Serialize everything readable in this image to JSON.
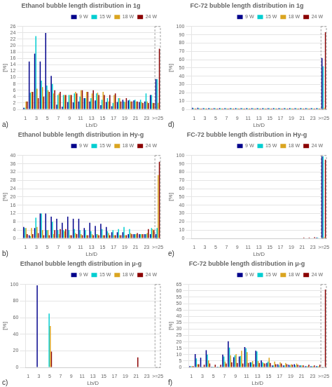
{
  "chart_data": [
    {
      "type": "bar",
      "title": "Ethanol bubble length distribution in 1g",
      "x_label": "Lb/D",
      "y_label": "[%]",
      "annotation": "a)",
      "categories": [
        "1",
        null,
        "3",
        null,
        "5",
        null,
        "7",
        null,
        "9",
        null,
        "11",
        null,
        "13",
        null,
        "15",
        null,
        "17",
        null,
        "19",
        null,
        "21",
        null,
        "23",
        null,
        ">=25"
      ],
      "series": [
        {
          "name": "9 W",
          "color": "#00008B",
          "values": [
            0.5,
            15.0,
            17.5,
            15.0,
            24.0,
            10.5,
            1.5,
            0.8,
            2.3,
            2.2,
            2.5,
            3.5,
            2.5,
            2.8,
            1.3,
            2.3,
            1.0,
            2.3,
            3.0,
            2.8,
            2.8,
            2.3,
            2.5,
            4.5,
            9.5
          ]
        },
        {
          "name": "15 W",
          "color": "#00CED1",
          "values": [
            0.5,
            5.2,
            23.0,
            9.0,
            7.5,
            8.0,
            4.5,
            4.5,
            4.5,
            5.0,
            4.0,
            3.5,
            3.5,
            5.0,
            3.0,
            3.5,
            2.0,
            3.5,
            2.5,
            3.0,
            3.0,
            3.0,
            5.0,
            4.5,
            9.5
          ]
        },
        {
          "name": "18 W",
          "color": "#DAA520",
          "values": [
            2.5,
            5.5,
            6.5,
            7.0,
            6.0,
            5.0,
            5.0,
            4.5,
            4.5,
            5.5,
            6.0,
            5.5,
            5.0,
            5.2,
            5.5,
            2.5,
            4.5,
            3.5,
            2.3,
            2.5,
            2.5,
            2.3,
            2.5,
            2.0,
            2.0
          ]
        },
        {
          "name": "24 W",
          "color": "#8B0000",
          "values": [
            2.5,
            5.5,
            3.5,
            4.0,
            5.5,
            6.0,
            5.5,
            4.5,
            4.5,
            5.0,
            6.0,
            5.5,
            6.0,
            4.5,
            4.5,
            4.5,
            5.0,
            2.5,
            3.5,
            2.5,
            2.5,
            2.0,
            2.0,
            2.0,
            19.0
          ]
        }
      ],
      "ylim": [
        0,
        26
      ],
      "yticks": [
        0,
        2,
        4,
        6,
        8,
        10,
        12,
        14,
        16,
        18,
        20,
        22,
        24,
        26
      ],
      "grid": true,
      "legend": "upper right"
    },
    {
      "type": "bar",
      "title": "Ethanol bubble length distribution in Hy-g",
      "x_label": "Lb/D",
      "y_label": "[%]",
      "annotation": "b)",
      "categories": [
        "1",
        null,
        "3",
        null,
        "5",
        null,
        "7",
        null,
        "9",
        null,
        "11",
        null,
        "13",
        null,
        "15",
        null,
        "17",
        null,
        "19",
        null,
        "21",
        null,
        "23",
        null,
        ">=25"
      ],
      "series": [
        {
          "name": "9 W",
          "color": "#00008B",
          "values": [
            5.5,
            1.5,
            5.0,
            12.0,
            12.0,
            10.5,
            9.5,
            7.5,
            10.5,
            9.5,
            9.5,
            5.0,
            7.5,
            6.0,
            7.0,
            5.5,
            3.0,
            3.0,
            3.0,
            2.0,
            2.0,
            2.0,
            2.0,
            2.0,
            2.0
          ]
        },
        {
          "name": "15 W",
          "color": "#00CED1",
          "values": [
            5.0,
            1.0,
            10.0,
            12.0,
            4.0,
            8.0,
            4.0,
            4.0,
            4.0,
            4.5,
            4.0,
            4.0,
            3.5,
            2.0,
            4.5,
            3.5,
            4.0,
            4.5,
            5.5,
            4.5,
            2.0,
            2.0,
            2.0,
            5.0,
            5.0
          ]
        },
        {
          "name": "18 W",
          "color": "#DAA520",
          "values": [
            5.0,
            5.0,
            5.5,
            4.0,
            4.0,
            2.0,
            2.0,
            3.5,
            1.5,
            2.5,
            2.0,
            1.5,
            2.0,
            2.0,
            1.5,
            2.5,
            1.5,
            1.5,
            1.5,
            2.5,
            2.0,
            2.0,
            2.5,
            4.5,
            30.5
          ]
        },
        {
          "name": "24 W",
          "color": "#8B0000",
          "values": [
            2.0,
            2.0,
            2.5,
            1.5,
            1.5,
            4.0,
            4.5,
            4.5,
            1.5,
            2.0,
            1.5,
            1.5,
            1.5,
            1.5,
            1.5,
            1.5,
            1.5,
            1.5,
            1.5,
            2.0,
            2.5,
            2.0,
            4.5,
            4.0,
            37.0
          ]
        }
      ],
      "ylim": [
        0,
        40
      ],
      "yticks": [
        0,
        4,
        8,
        12,
        16,
        20,
        24,
        28,
        32,
        36,
        40
      ],
      "grid": true,
      "legend": "upper right"
    },
    {
      "type": "bar",
      "title": "Ethanol bubble length distribution in μ-g",
      "x_label": "Lb/D",
      "y_label": "[%]",
      "annotation": "c)",
      "categories": [
        "1",
        null,
        "3",
        null,
        "5",
        null,
        "7",
        null,
        "9",
        null,
        "11",
        null,
        "13",
        null,
        "15",
        null,
        "17",
        null,
        "19",
        null,
        "21",
        null,
        "23",
        null,
        ">=25"
      ],
      "series": [
        {
          "name": "9 W",
          "color": "#00008B",
          "values": [
            0.0,
            0.0,
            99.0,
            0.0,
            0.0,
            0.0,
            0.0,
            0.0,
            0.0,
            0.0,
            0.0,
            0.0,
            0.0,
            0.0,
            0.0,
            0.0,
            0.0,
            0.0,
            0.0,
            0.0,
            0.0,
            0.0,
            0.0,
            0.0,
            0.0
          ]
        },
        {
          "name": "15 W",
          "color": "#00CED1",
          "values": [
            0.0,
            0.0,
            0.0,
            0.0,
            65.0,
            0.0,
            0.0,
            0.0,
            0.0,
            0.0,
            0.0,
            0.0,
            0.0,
            0.0,
            0.0,
            0.0,
            0.0,
            0.0,
            0.0,
            0.0,
            0.0,
            0.0,
            0.0,
            0.0,
            0.0
          ]
        },
        {
          "name": "18 W",
          "color": "#DAA520",
          "values": [
            0.0,
            0.0,
            0.0,
            0.0,
            50.0,
            0.0,
            0.0,
            0.0,
            0.0,
            0.0,
            0.0,
            0.0,
            0.0,
            0.0,
            0.0,
            0.0,
            0.0,
            0.0,
            0.0,
            0.0,
            0.0,
            0.0,
            0.0,
            0.0,
            0.0
          ]
        },
        {
          "name": "24 W",
          "color": "#8B0000",
          "values": [
            0.0,
            0.0,
            0.0,
            0.0,
            19.0,
            0.0,
            0.0,
            0.0,
            0.0,
            0.0,
            0.0,
            0.0,
            0.0,
            0.0,
            0.0,
            0.0,
            0.0,
            0.0,
            0.0,
            0.0,
            12.0,
            0.0,
            0.0,
            0.0,
            0.0
          ]
        }
      ],
      "ylim": [
        0,
        100
      ],
      "yticks": [
        0,
        20,
        40,
        60,
        80,
        100
      ],
      "grid": true,
      "legend": "upper right"
    },
    {
      "type": "bar",
      "title": "FC-72 bubble length distribution in 1g",
      "x_label": "Lb/D",
      "y_label": "[%]",
      "annotation": "d)",
      "categories": [
        "1",
        null,
        "3",
        null,
        "5",
        null,
        "7",
        null,
        "9",
        null,
        "11",
        null,
        "13",
        null,
        "15",
        null,
        "17",
        null,
        "19",
        null,
        "21",
        null,
        "23",
        null,
        ">=25"
      ],
      "series": [
        {
          "name": "9 W",
          "color": "#00008B",
          "values": [
            2.0,
            2.0,
            1.5,
            1.5,
            1.5,
            1.5,
            1.5,
            1.5,
            1.5,
            1.5,
            1.5,
            1.5,
            1.5,
            1.5,
            1.5,
            1.5,
            1.5,
            1.5,
            1.5,
            1.5,
            1.5,
            1.5,
            1.5,
            1.5,
            62.0
          ]
        },
        {
          "name": "15 W",
          "color": "#00CED1",
          "values": [
            1.5,
            1.5,
            1.5,
            1.5,
            1.5,
            1.5,
            1.5,
            1.5,
            1.5,
            1.5,
            1.5,
            1.5,
            1.5,
            1.5,
            1.5,
            1.5,
            1.5,
            1.5,
            1.5,
            1.5,
            1.5,
            1.5,
            1.5,
            1.5,
            52.0
          ]
        },
        {
          "name": "18 W",
          "color": "#DAA520",
          "values": [
            1.0,
            1.0,
            1.0,
            1.0,
            1.0,
            1.0,
            1.0,
            1.0,
            1.0,
            1.0,
            1.0,
            1.0,
            1.0,
            1.0,
            1.0,
            1.0,
            1.0,
            1.0,
            1.0,
            1.0,
            1.0,
            1.0,
            1.0,
            1.0,
            2.0
          ]
        },
        {
          "name": "24 W",
          "color": "#8B0000",
          "values": [
            1.0,
            1.0,
            1.0,
            1.0,
            1.0,
            1.0,
            1.0,
            1.0,
            1.0,
            1.0,
            1.0,
            1.0,
            1.0,
            1.0,
            1.0,
            1.0,
            1.0,
            1.0,
            1.0,
            1.0,
            1.0,
            1.0,
            1.0,
            1.0,
            93.0
          ]
        }
      ],
      "ylim": [
        0,
        100
      ],
      "yticks": [
        0,
        10,
        20,
        30,
        40,
        50,
        60,
        70,
        80,
        90,
        100
      ],
      "grid": true,
      "legend": "upper right"
    },
    {
      "type": "bar",
      "title": "FC-72 bubble length distribution in Hy-g",
      "x_label": "Lb/D",
      "y_label": "[%]",
      "annotation": "e)",
      "categories": [
        "1",
        null,
        "3",
        null,
        "5",
        null,
        "7",
        null,
        "9",
        null,
        "11",
        null,
        "13",
        null,
        "15",
        null,
        "17",
        null,
        "19",
        null,
        "21",
        null,
        "23",
        null,
        ">=25"
      ],
      "series": [
        {
          "name": "9 W",
          "color": "#00008B",
          "values": [
            0.0,
            0.0,
            0.0,
            0.0,
            0.0,
            0.0,
            0.0,
            0.0,
            0.0,
            0.0,
            0.0,
            0.0,
            0.0,
            0.0,
            0.0,
            0.0,
            0.0,
            0.0,
            0.0,
            0.0,
            0.0,
            0.0,
            0.0,
            1.0,
            99.0
          ]
        },
        {
          "name": "15 W",
          "color": "#00CED1",
          "values": [
            0.0,
            0.0,
            0.0,
            0.0,
            0.0,
            0.0,
            0.0,
            0.0,
            0.0,
            0.0,
            0.0,
            0.0,
            0.0,
            0.0,
            0.0,
            0.0,
            0.0,
            0.0,
            0.0,
            0.0,
            0.0,
            0.0,
            0.0,
            1.0,
            99.0
          ]
        },
        {
          "name": "18 W",
          "color": "#DAA520",
          "values": [
            0.0,
            0.0,
            0.0,
            0.0,
            0.0,
            0.0,
            0.0,
            0.0,
            0.0,
            0.0,
            0.0,
            0.0,
            0.0,
            0.0,
            0.0,
            0.0,
            0.0,
            0.0,
            0.0,
            0.0,
            0.0,
            0.0,
            0.0,
            0.5,
            1.5
          ]
        },
        {
          "name": "24 W",
          "color": "#8B0000",
          "values": [
            0.0,
            0.0,
            0.0,
            0.0,
            0.0,
            0.0,
            0.0,
            0.0,
            0.0,
            0.0,
            0.0,
            0.0,
            0.0,
            0.0,
            0.0,
            0.0,
            0.5,
            0.5,
            0.5,
            0.5,
            1.0,
            1.0,
            1.5,
            0.5,
            95.0
          ]
        }
      ],
      "ylim": [
        0,
        100
      ],
      "yticks": [
        0,
        10,
        20,
        30,
        40,
        50,
        60,
        70,
        80,
        90,
        100
      ],
      "grid": true,
      "legend": "upper right"
    },
    {
      "type": "bar",
      "title": "FC-72 bubble length distribution in μ-g",
      "x_label": "Lb/D",
      "y_label": "[%]",
      "annotation": "f)",
      "categories": [
        "1",
        null,
        "3",
        null,
        "5",
        null,
        "7",
        null,
        "9",
        null,
        "11",
        null,
        "13",
        null,
        "15",
        null,
        "17",
        null,
        "19",
        null,
        "21",
        null,
        "23",
        null,
        ">=25"
      ],
      "series": [
        {
          "name": "9 W",
          "color": "#00008B",
          "values": [
            1.0,
            10.5,
            7.5,
            13.5,
            0.5,
            0.5,
            10.0,
            20.5,
            8.0,
            8.5,
            16.0,
            4.0,
            13.0,
            5.5,
            3.5,
            1.5,
            2.5,
            1.5,
            2.0,
            2.5,
            1.5,
            1.0,
            1.0,
            1.0,
            0.0
          ]
        },
        {
          "name": "15 W",
          "color": "#00CED1",
          "values": [
            1.0,
            7.0,
            0.5,
            10.0,
            0.5,
            0.5,
            8.5,
            15.5,
            9.5,
            9.0,
            15.0,
            4.0,
            12.5,
            4.0,
            4.5,
            1.5,
            1.5,
            1.5,
            1.5,
            1.5,
            1.5,
            1.0,
            1.0,
            1.0,
            0.0
          ]
        },
        {
          "name": "18 W",
          "color": "#DAA520",
          "values": [
            1.0,
            2.5,
            0.5,
            5.5,
            0.5,
            0.5,
            4.5,
            9.5,
            10.5,
            13.0,
            12.0,
            5.0,
            5.0,
            3.5,
            7.5,
            4.5,
            4.0,
            3.5,
            2.5,
            3.0,
            1.5,
            1.0,
            1.0,
            1.0,
            0.0
          ]
        },
        {
          "name": "24 W",
          "color": "#8B0000",
          "values": [
            1.0,
            2.5,
            2.0,
            3.0,
            2.0,
            2.0,
            3.0,
            4.0,
            3.5,
            3.0,
            3.5,
            2.5,
            3.5,
            3.0,
            3.5,
            2.5,
            3.0,
            2.5,
            2.0,
            2.0,
            1.5,
            2.0,
            1.5,
            2.0,
            61.0
          ]
        }
      ],
      "ylim": [
        0,
        65
      ],
      "yticks": [
        0,
        5,
        10,
        15,
        20,
        25,
        30,
        35,
        40,
        45,
        50,
        55,
        60,
        65
      ],
      "grid": true,
      "legend": "upper right"
    }
  ]
}
